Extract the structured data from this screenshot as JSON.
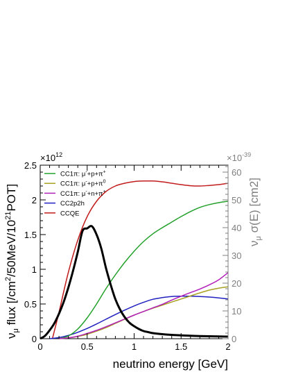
{
  "chart_data": {
    "type": "line",
    "xlabel": "neutrino energy [GeV]",
    "x_range": [
      0,
      2
    ],
    "x_ticks": [
      "0",
      "0.5",
      "1",
      "1.5",
      "2"
    ],
    "left_axis": {
      "label_parts": [
        "ν",
        "μ",
        " flux [/cm",
        "2",
        "/50MeV/10",
        "21",
        "POT]"
      ],
      "multiplier": "×10",
      "multiplier_exp": "12",
      "range": [
        0,
        2.5
      ],
      "ticks": [
        "0",
        "0.5",
        "1",
        "1.5",
        "2",
        "2.5"
      ],
      "color": "#000000"
    },
    "right_axis": {
      "label_parts": [
        "ν",
        "μ",
        " σ(E) [cm2]"
      ],
      "multiplier": "×10",
      "multiplier_exp": "-39",
      "range": [
        0,
        62.5
      ],
      "ticks": [
        "0",
        "10",
        "20",
        "30",
        "40",
        "50",
        "60"
      ],
      "color": "#7f7f7f"
    },
    "legend": {
      "placement": "top-left",
      "entries": [
        {
          "key": "cc1pi_ppip",
          "parts": [
            "CC1π: μ",
            "-",
            "+p+π",
            "+"
          ],
          "color": "#22a02a"
        },
        {
          "key": "cc1pi_ppi0",
          "parts": [
            "CC1π: μ",
            "-",
            "+p+π",
            "0"
          ],
          "color": "#a8a020"
        },
        {
          "key": "cc1pi_npip",
          "parts": [
            "CC1π: μ",
            "-",
            "+n+π",
            "+"
          ],
          "color": "#b21fb8"
        },
        {
          "key": "cc2p2h",
          "parts": [
            "CC2p2h"
          ],
          "color": "#2020c0"
        },
        {
          "key": "ccqe",
          "parts": [
            "CCQE"
          ],
          "color": "#c21b1b"
        }
      ]
    },
    "flux": {
      "axis": "left",
      "color": "#000000",
      "x": [
        0.0,
        0.05,
        0.1,
        0.15,
        0.2,
        0.25,
        0.3,
        0.35,
        0.4,
        0.45,
        0.5,
        0.55,
        0.6,
        0.65,
        0.7,
        0.75,
        0.8,
        0.85,
        0.9,
        0.95,
        1.0,
        1.05,
        1.1,
        1.15,
        1.2,
        1.3,
        1.4,
        1.5,
        1.6,
        1.7,
        1.8,
        1.9,
        2.0
      ],
      "y": [
        0.0,
        0.04,
        0.12,
        0.22,
        0.36,
        0.53,
        0.74,
        0.98,
        1.25,
        1.55,
        1.59,
        1.62,
        1.5,
        1.3,
        1.02,
        0.78,
        0.57,
        0.42,
        0.31,
        0.23,
        0.18,
        0.14,
        0.11,
        0.095,
        0.08,
        0.065,
        0.055,
        0.048,
        0.042,
        0.038,
        0.035,
        0.032,
        0.03
      ]
    },
    "series": [
      {
        "key": "ccqe",
        "axis": "right",
        "color": "#c21b1b",
        "x": [
          0.13,
          0.2,
          0.3,
          0.4,
          0.5,
          0.6,
          0.7,
          0.8,
          0.9,
          1.0,
          1.1,
          1.2,
          1.3,
          1.4,
          1.5,
          1.6,
          1.7,
          1.8,
          1.9,
          2.0
        ],
        "y": [
          0.0,
          9.5,
          24.0,
          35.5,
          44.0,
          49.5,
          53.0,
          55.0,
          56.0,
          56.6,
          56.8,
          56.8,
          56.5,
          56.0,
          55.5,
          55.1,
          55.0,
          55.2,
          55.5,
          56.0
        ]
      },
      {
        "key": "cc2p2h",
        "axis": "right",
        "color": "#2020c0",
        "x": [
          0.1,
          0.2,
          0.3,
          0.4,
          0.5,
          0.6,
          0.7,
          0.8,
          0.9,
          1.0,
          1.1,
          1.2,
          1.3,
          1.4,
          1.5,
          1.6,
          1.7,
          1.8,
          1.9,
          2.0
        ],
        "y": [
          0.0,
          0.4,
          1.2,
          2.3,
          3.7,
          5.3,
          7.0,
          8.7,
          10.3,
          11.8,
          13.1,
          14.2,
          14.8,
          15.2,
          15.3,
          15.3,
          15.2,
          15.0,
          14.7,
          14.3
        ]
      },
      {
        "key": "cc1pi_ppip",
        "axis": "right",
        "color": "#22a02a",
        "x": [
          0.2,
          0.3,
          0.4,
          0.5,
          0.6,
          0.7,
          0.8,
          0.9,
          1.0,
          1.1,
          1.2,
          1.3,
          1.4,
          1.5,
          1.6,
          1.7,
          1.8,
          1.9,
          2.0
        ],
        "y": [
          0.0,
          1.0,
          3.5,
          7.5,
          12.5,
          18.0,
          23.0,
          27.5,
          31.5,
          35.0,
          37.8,
          40.0,
          42.0,
          44.0,
          45.8,
          47.3,
          48.3,
          49.0,
          49.5
        ]
      },
      {
        "key": "cc1pi_ppi0",
        "axis": "right",
        "color": "#a8a020",
        "x": [
          0.2,
          0.3,
          0.4,
          0.5,
          0.6,
          0.7,
          0.8,
          0.9,
          1.0,
          1.1,
          1.2,
          1.3,
          1.4,
          1.5,
          1.6,
          1.7,
          1.8,
          1.9,
          2.0
        ],
        "y": [
          0.0,
          0.3,
          0.8,
          1.6,
          2.7,
          4.0,
          5.5,
          7.0,
          8.5,
          9.8,
          11.0,
          12.1,
          13.2,
          14.3,
          15.4,
          16.5,
          17.5,
          18.2,
          18.7
        ]
      },
      {
        "key": "cc1pi_npip",
        "axis": "right",
        "color": "#b21fb8",
        "x": [
          0.2,
          0.3,
          0.4,
          0.5,
          0.6,
          0.7,
          0.8,
          0.9,
          1.0,
          1.1,
          1.2,
          1.3,
          1.4,
          1.5,
          1.6,
          1.7,
          1.8,
          1.9,
          2.0
        ],
        "y": [
          0.0,
          0.3,
          0.9,
          1.9,
          3.0,
          4.3,
          5.7,
          7.1,
          8.5,
          9.8,
          11.1,
          12.4,
          13.9,
          15.3,
          16.6,
          17.9,
          19.4,
          21.2,
          23.8
        ]
      }
    ]
  }
}
